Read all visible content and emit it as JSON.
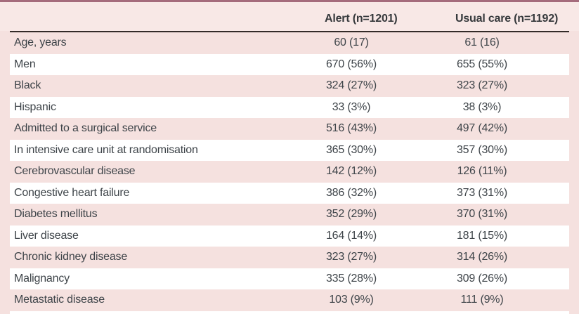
{
  "table": {
    "columns": [
      {
        "label": "Alert (n=1201)"
      },
      {
        "label": "Usual care (n=1192)"
      }
    ],
    "rows": [
      {
        "label": "Age, years",
        "alert": "60 (17)",
        "usual": "61 (16)"
      },
      {
        "label": "Men",
        "alert": "670 (56%)",
        "usual": "655 (55%)"
      },
      {
        "label": "Black",
        "alert": "324 (27%)",
        "usual": "323 (27%)"
      },
      {
        "label": "Hispanic",
        "alert": "33 (3%)",
        "usual": "38 (3%)"
      },
      {
        "label": "Admitted to a surgical service",
        "alert": "516 (43%)",
        "usual": "497 (42%)"
      },
      {
        "label": "In intensive care unit at randomisation",
        "alert": "365 (30%)",
        "usual": "357 (30%)"
      },
      {
        "label": "Cerebrovascular disease",
        "alert": "142 (12%)",
        "usual": "126 (11%)"
      },
      {
        "label": "Congestive heart failure",
        "alert": "386 (32%)",
        "usual": "373 (31%)"
      },
      {
        "label": "Diabetes mellitus",
        "alert": "352 (29%)",
        "usual": "370 (31%)"
      },
      {
        "label": "Liver disease",
        "alert": "164 (14%)",
        "usual": "181 (15%)"
      },
      {
        "label": "Chronic kidney disease",
        "alert": "323 (27%)",
        "usual": "314 (26%)"
      },
      {
        "label": "Malignancy",
        "alert": "335 (28%)",
        "usual": "309 (26%)"
      },
      {
        "label": "Metastatic disease",
        "alert": "103 (9%)",
        "usual": "111 (9%)"
      }
    ]
  },
  "colors": {
    "top_bar": "#a56b7c",
    "header_background": "#f8e8e6",
    "header_rule": "#332a28",
    "row_pink": "#f5e1df",
    "row_white": "#ffffff",
    "text": "#3e4449"
  }
}
